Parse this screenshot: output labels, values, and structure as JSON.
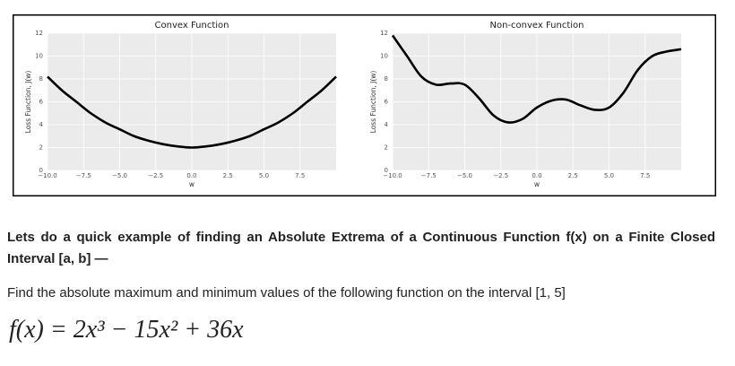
{
  "chart_data": [
    {
      "type": "line",
      "title": "Convex Function",
      "xlabel": "w",
      "ylabel": "Loss Function, J(w)",
      "x": [
        -10,
        -9,
        -8,
        -7,
        -6,
        -5,
        -4,
        -3,
        -2,
        -1,
        0,
        1,
        2,
        3,
        4,
        5,
        6,
        7,
        8,
        9,
        10
      ],
      "values": [
        8.2,
        7.0,
        6.0,
        5.0,
        4.2,
        3.6,
        3.0,
        2.6,
        2.3,
        2.1,
        2.0,
        2.1,
        2.3,
        2.6,
        3.0,
        3.6,
        4.2,
        5.0,
        6.0,
        7.0,
        8.2
      ],
      "color": "#000000",
      "xlim": [
        -10,
        10
      ],
      "ylim": [
        0,
        12
      ],
      "xticks": [
        {
          "value": -10,
          "label": "−10.0"
        },
        {
          "value": -7.5,
          "label": "−7.5"
        },
        {
          "value": -5,
          "label": "−5.0"
        },
        {
          "value": -2.5,
          "label": "−2.5"
        },
        {
          "value": 0,
          "label": "0.0"
        },
        {
          "value": 2.5,
          "label": "2.5"
        },
        {
          "value": 5,
          "label": "5.0"
        },
        {
          "value": 7.5,
          "label": "7.5"
        }
      ],
      "yticks": [
        0,
        2,
        4,
        6,
        8,
        10,
        12
      ],
      "grid": true
    },
    {
      "type": "line",
      "title": "Non-convex Function",
      "xlabel": "w",
      "ylabel": "Loss Function, J(w)",
      "x": [
        -10,
        -9,
        -8,
        -7,
        -6,
        -5,
        -4,
        -3,
        -2,
        -1,
        0,
        1,
        2,
        3,
        4,
        5,
        6,
        7,
        8,
        9,
        10
      ],
      "values": [
        11.8,
        10.0,
        8.2,
        7.5,
        7.6,
        7.5,
        6.3,
        4.8,
        4.2,
        4.5,
        5.5,
        6.1,
        6.2,
        5.7,
        5.3,
        5.5,
        6.8,
        8.8,
        10.0,
        10.4,
        10.6
      ],
      "color": "#000000",
      "xlim": [
        -10,
        10
      ],
      "ylim": [
        0,
        12
      ],
      "xticks": [
        {
          "value": -10,
          "label": "−10.0"
        },
        {
          "value": -7.5,
          "label": "−7.5"
        },
        {
          "value": -5,
          "label": "−5.0"
        },
        {
          "value": -2.5,
          "label": "−2.5"
        },
        {
          "value": 0,
          "label": "0.0"
        },
        {
          "value": 2.5,
          "label": "2.5"
        },
        {
          "value": 5,
          "label": "5.0"
        },
        {
          "value": 7.5,
          "label": "7.5"
        }
      ],
      "yticks": [
        0,
        2,
        4,
        6,
        8,
        10,
        12
      ],
      "grid": true
    }
  ],
  "document": {
    "heading": "Lets do a quick example of finding an Absolute Extrema of a Continuous Function f(x) on a Finite Closed Interval [a, b] —",
    "paragraph": "Find the absolute maximum and minimum values of the following function on the interval [1, 5]",
    "formula": "f(x) = 2x³ − 15x² + 36x"
  }
}
